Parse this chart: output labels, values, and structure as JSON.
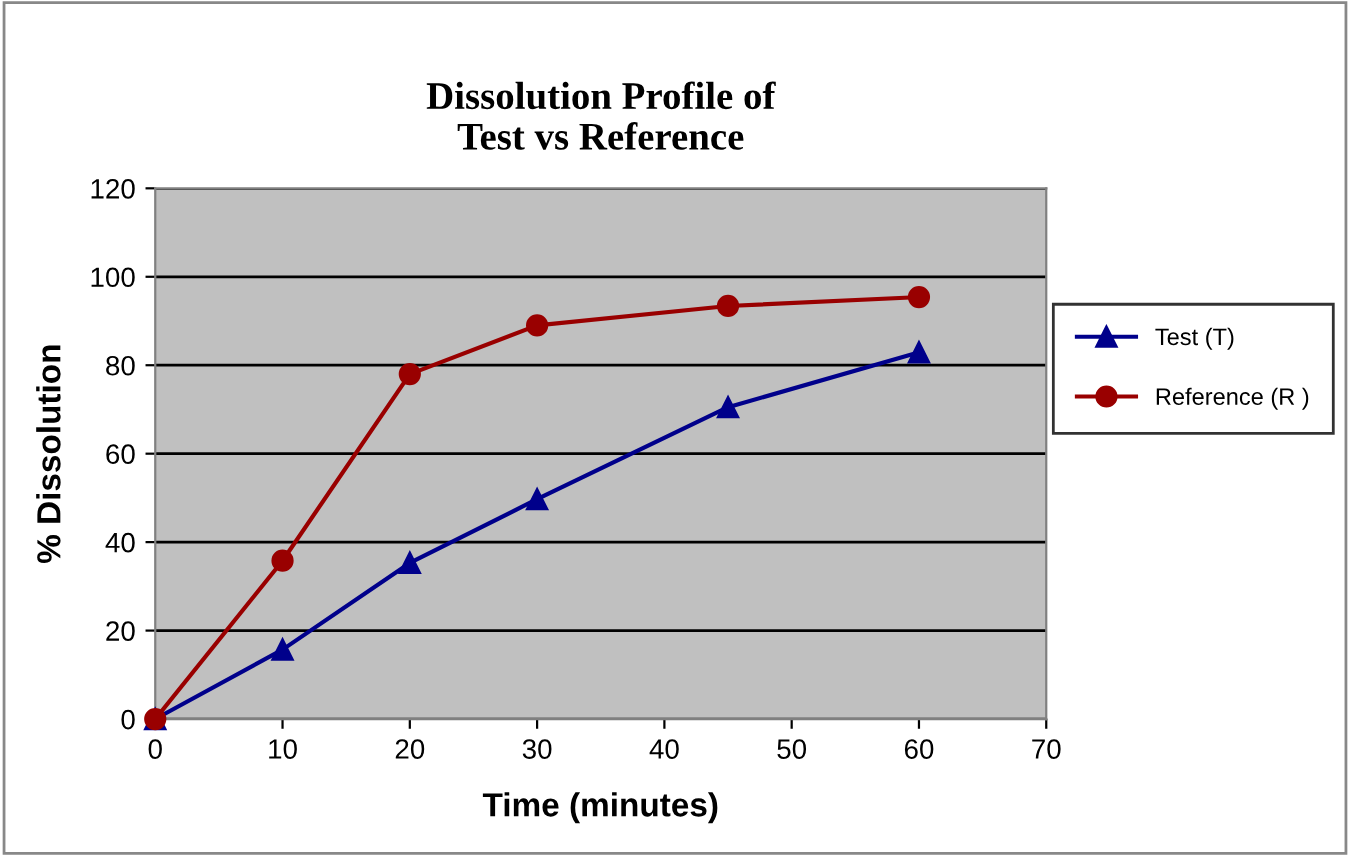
{
  "chart_data": {
    "type": "line",
    "title": "Dissolution Profile of\nTest vs Reference",
    "xlabel": "Time (minutes)",
    "ylabel": "% Dissolution",
    "x": [
      0,
      10,
      20,
      30,
      45,
      60
    ],
    "series": [
      {
        "name": "Test (T)",
        "color": "#00008b",
        "marker": "triangle",
        "values": [
          0,
          15.7,
          35.3,
          49.7,
          70.5,
          82.9
        ]
      },
      {
        "name": "Reference (R )",
        "color": "#990000",
        "marker": "circle",
        "values": [
          0,
          35.8,
          78,
          89,
          93.4,
          95.4
        ]
      }
    ],
    "xlim": [
      0,
      70
    ],
    "xticks": [
      0,
      10,
      20,
      30,
      40,
      50,
      60,
      70
    ],
    "ylim": [
      0,
      120
    ],
    "yticks": [
      0,
      20,
      40,
      60,
      80,
      100,
      120
    ],
    "grid": "y",
    "legend": "right",
    "line_style": "solid"
  }
}
